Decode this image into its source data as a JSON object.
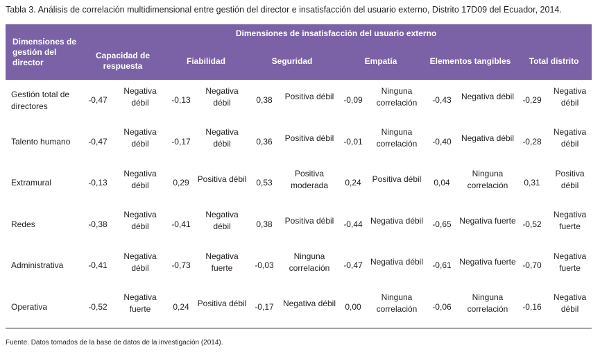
{
  "caption": "Tabla 3. Análisis de correlación multidimensional entre gestión del director e insatisfacción del usuario externo, Distrito 17D09 del Ecuador, 2014.",
  "header": {
    "row_dimension": "Dimensiones de gestión del director",
    "group_label": "Dimensiones de insatisfacción del usuario externo",
    "columns": [
      "Capacidad de respuesta",
      "Fiabilidad",
      "Seguridad",
      "Empatía",
      "Elementos tangibles",
      "Total distrito"
    ]
  },
  "rows": [
    {
      "label": "Gestión total de directores",
      "cells": [
        {
          "value": "-0,47",
          "desc": "Negativa débil"
        },
        {
          "value": "-0,13",
          "desc": "Negativa débil"
        },
        {
          "value": "0,38",
          "desc": "Positiva débil"
        },
        {
          "value": "-0,09",
          "desc": "Ninguna correlación"
        },
        {
          "value": "-0,43",
          "desc": "Negativa débil"
        },
        {
          "value": "-0,29",
          "desc": "Negativa débil"
        }
      ]
    },
    {
      "label": "Talento humano",
      "cells": [
        {
          "value": "-0,47",
          "desc": "Negativa débil"
        },
        {
          "value": "-0,17",
          "desc": "Negativa débil"
        },
        {
          "value": "0,36",
          "desc": "Positiva débil"
        },
        {
          "value": "-0,01",
          "desc": "Ninguna correlación"
        },
        {
          "value": "-0,40",
          "desc": "Negativa débil"
        },
        {
          "value": "-0,28",
          "desc": "Negativa débil"
        }
      ]
    },
    {
      "label": "Extramural",
      "cells": [
        {
          "value": "-0,13",
          "desc": "Negativa débil"
        },
        {
          "value": "0,29",
          "desc": "Positiva débil"
        },
        {
          "value": "0,53",
          "desc": "Positiva moderada"
        },
        {
          "value": "0,24",
          "desc": "Positiva débil"
        },
        {
          "value": "0,04",
          "desc": "Ninguna correlación"
        },
        {
          "value": "0,31",
          "desc": "Positiva débil"
        }
      ]
    },
    {
      "label": "Redes",
      "cells": [
        {
          "value": "-0,38",
          "desc": "Negativa débil"
        },
        {
          "value": "-0,41",
          "desc": "Negativa débil"
        },
        {
          "value": "0,38",
          "desc": "Positiva débil"
        },
        {
          "value": "-0,44",
          "desc": "Negativa débil"
        },
        {
          "value": "-0,65",
          "desc": "Negativa fuerte"
        },
        {
          "value": "-0,52",
          "desc": "Negativa fuerte"
        }
      ]
    },
    {
      "label": "Administrativa",
      "cells": [
        {
          "value": "-0,41",
          "desc": "Negativa débil"
        },
        {
          "value": "-0,73",
          "desc": "Negativa fuerte"
        },
        {
          "value": "-0,03",
          "desc": "Ninguna correlación"
        },
        {
          "value": "-0,47",
          "desc": "Negativa débil"
        },
        {
          "value": "-0,61",
          "desc": "Negativa fuerte"
        },
        {
          "value": "-0,70",
          "desc": "Negativa fuerte"
        }
      ]
    },
    {
      "label": "Operativa",
      "cells": [
        {
          "value": "-0,52",
          "desc": "Negativa fuerte"
        },
        {
          "value": "0,24",
          "desc": "Positiva débil"
        },
        {
          "value": "-0,17",
          "desc": "Negativa débil"
        },
        {
          "value": "0,00",
          "desc": "Ninguna correlación"
        },
        {
          "value": "-0,06",
          "desc": "Ninguna correlación"
        },
        {
          "value": "-0,16",
          "desc": "Negativa débil"
        }
      ]
    }
  ],
  "source": "Fuente. Datos tomados de la base de datos de la investigación (2014)."
}
